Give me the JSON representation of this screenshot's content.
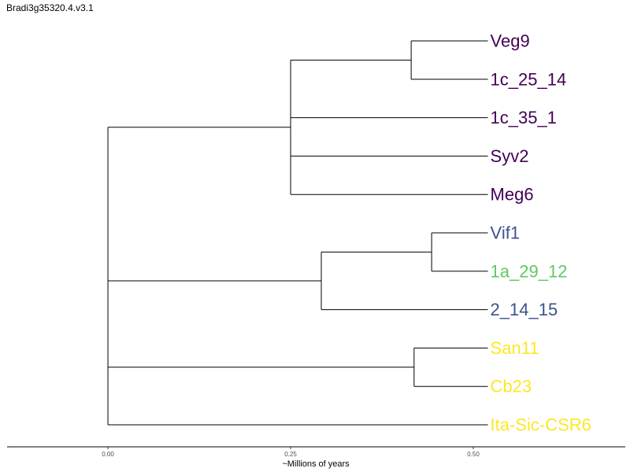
{
  "title": "Bradi3g35320.4.v3.1",
  "colors": {
    "purple": "#440154",
    "blue": "#3b528b",
    "green": "#5ec962",
    "yellow": "#fde725",
    "branch": "#000000"
  },
  "chart_data": {
    "type": "dendrogram",
    "xlabel": "~Millions of years",
    "xticks": [
      {
        "value": 0.0,
        "label": "0.00"
      },
      {
        "value": 0.25,
        "label": "0.25"
      },
      {
        "value": 0.5,
        "label": "0.50"
      }
    ],
    "xlim": [
      -0.138,
      0.708
    ],
    "tips": [
      {
        "id": "t1",
        "label": "Veg9",
        "color": "purple",
        "x": 0.52
      },
      {
        "id": "t2",
        "label": "1c_25_14",
        "color": "purple",
        "x": 0.52
      },
      {
        "id": "t3",
        "label": "1c_35_1",
        "color": "purple",
        "x": 0.52
      },
      {
        "id": "t4",
        "label": "Syv2",
        "color": "purple",
        "x": 0.52
      },
      {
        "id": "t5",
        "label": "Meg6",
        "color": "purple",
        "x": 0.52
      },
      {
        "id": "t6",
        "label": "Vif1",
        "color": "blue",
        "x": 0.52
      },
      {
        "id": "t7",
        "label": "1a_29_12",
        "color": "green",
        "x": 0.52
      },
      {
        "id": "t8",
        "label": "2_14_15",
        "color": "blue",
        "x": 0.52
      },
      {
        "id": "t9",
        "label": "San11",
        "color": "yellow",
        "x": 0.52
      },
      {
        "id": "t10",
        "label": "Cb23",
        "color": "yellow",
        "x": 0.52
      },
      {
        "id": "t11",
        "label": "Ita-Sic-CSR6",
        "color": "yellow",
        "x": 0.52
      }
    ],
    "nodes": [
      {
        "id": "n_veg",
        "x": 0.415,
        "children": [
          "t1",
          "t2"
        ]
      },
      {
        "id": "n_purple",
        "x": 0.25,
        "children": [
          "n_veg",
          "t3",
          "t4",
          "t5"
        ]
      },
      {
        "id": "n_vif",
        "x": 0.443,
        "children": [
          "t6",
          "t7"
        ]
      },
      {
        "id": "n_blue",
        "x": 0.292,
        "children": [
          "n_vif",
          "t8"
        ]
      },
      {
        "id": "n_yellow",
        "x": 0.419,
        "children": [
          "t9",
          "t10"
        ]
      },
      {
        "id": "root",
        "x": 0.0,
        "children": [
          "n_purple",
          "n_blue",
          "n_yellow",
          "t11"
        ]
      }
    ],
    "root": "root"
  }
}
